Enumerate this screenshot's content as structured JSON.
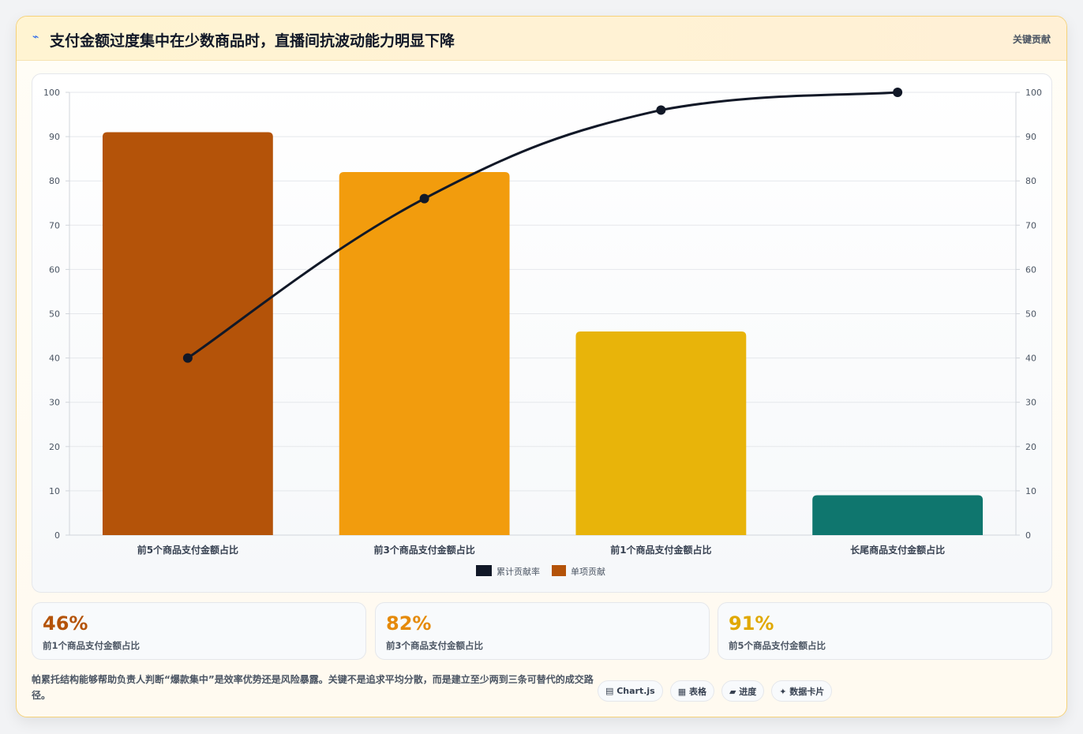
{
  "header": {
    "icon": "lightning-icon",
    "title": "支付金额过度集中在少数商品时，直播间抗波动能力明显下降",
    "tag": "关键贡献"
  },
  "chart_data": {
    "type": "bar",
    "categories": [
      "前5个商品支付金额占比",
      "前3个商品支付金额占比",
      "前1个商品支付金额占比",
      "长尾商品支付金额占比"
    ],
    "series": [
      {
        "name": "单项贡献",
        "type": "bar",
        "values": [
          91,
          82,
          46,
          9
        ],
        "colors": [
          "#b45309",
          "#f29c0d",
          "#e8b40a",
          "#0f766e"
        ]
      },
      {
        "name": "累计贡献率",
        "type": "line",
        "values": [
          40,
          76,
          96,
          100
        ],
        "color": "#111827"
      }
    ],
    "legend": [
      "累计贡献率",
      "单项贡献"
    ],
    "legend_position": "bottom",
    "ylim": [
      0,
      100
    ],
    "y_ticks": [
      0,
      10,
      20,
      30,
      40,
      50,
      60,
      70,
      80,
      90,
      100
    ],
    "y2lim": [
      0,
      100
    ],
    "grid": true
  },
  "stats": [
    {
      "value": "46%",
      "label": "前1个商品支付金额占比",
      "color": "#b45309"
    },
    {
      "value": "82%",
      "label": "前3个商品支付金额占比",
      "color": "#e58a0a"
    },
    {
      "value": "91%",
      "label": "前5个商品支付金额占比",
      "color": "#e0a800"
    }
  ],
  "footer": {
    "text": "帕累托结构能够帮助负责人判断“爆款集中”是效率优势还是风险暴露。关键不是追求平均分散，而是建立至少两到三条可替代的成交路径。",
    "pills": [
      {
        "icon": "chart-icon",
        "label": "▤ Chart.js"
      },
      {
        "icon": "table-icon",
        "label": "▦ 表格"
      },
      {
        "icon": "progress-icon",
        "label": "▰ 进度"
      },
      {
        "icon": "card-icon",
        "label": "✦ 数据卡片"
      }
    ]
  }
}
